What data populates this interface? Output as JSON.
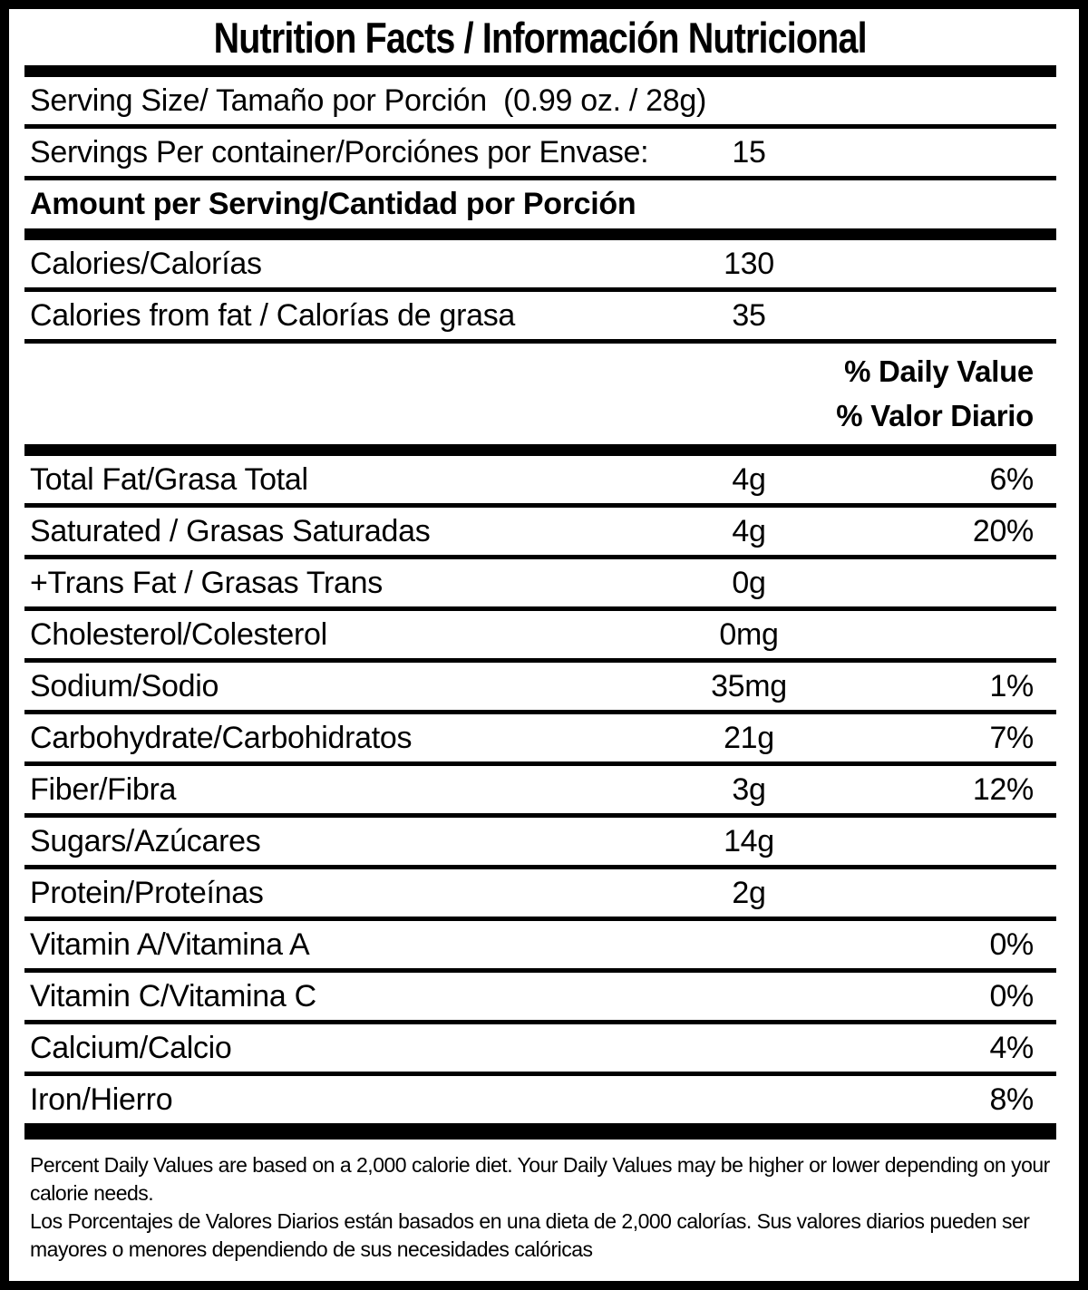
{
  "title": "Nutrition Facts / Información Nutricional",
  "serving": {
    "serving_size": "Serving Size/ Tamaño por Porción  (0.99 oz. / 28g)",
    "servings_label": "Servings Per container/Porciónes por Envase:",
    "servings_value": "15",
    "amount_per_serving": "Amount per Serving/Cantidad por Porción"
  },
  "calories": [
    {
      "label": "Calories/Calorías",
      "amount": "130"
    },
    {
      "label": "Calories from fat / Calorías de grasa",
      "amount": "35"
    }
  ],
  "dv_header": {
    "line1": "% Daily Value",
    "line2": "% Valor Diario"
  },
  "nutrients": [
    {
      "label": "Total Fat/Grasa Total",
      "amount": "4g",
      "dv": "6%"
    },
    {
      "label": "Saturated / Grasas Saturadas",
      "amount": "4g",
      "dv": "20%"
    },
    {
      "label": "+Trans Fat / Grasas Trans",
      "amount": "0g",
      "dv": ""
    },
    {
      "label": "Cholesterol/Colesterol",
      "amount": "0mg",
      "dv": ""
    },
    {
      "label": "Sodium/Sodio",
      "amount": "35mg",
      "dv": "1%"
    },
    {
      "label": "Carbohydrate/Carbohidratos",
      "amount": "21g",
      "dv": "7%"
    },
    {
      "label": "Fiber/Fibra",
      "amount": "3g",
      "dv": "12%"
    },
    {
      "label": "Sugars/Azúcares",
      "amount": "14g",
      "dv": ""
    },
    {
      "label": "Protein/Proteínas",
      "amount": "2g",
      "dv": ""
    },
    {
      "label": "Vitamin A/Vitamina A",
      "amount": "",
      "dv": "0%"
    },
    {
      "label": "Vitamin C/Vitamina C",
      "amount": "",
      "dv": "0%"
    },
    {
      "label": "Calcium/Calcio",
      "amount": "",
      "dv": "4%"
    },
    {
      "label": "Iron/Hierro",
      "amount": "",
      "dv": "8%"
    }
  ],
  "footnote": {
    "lines": [
      "Percent Daily Values are based on a 2,000 calorie diet. Your Daily Values may be higher or lower depending on your",
      "calorie needs.",
      "Los Porcentajes de Valores Diarios están basados en una dieta de 2,000 calorías. Sus valores diarios pueden ser",
      "mayores o menores dependiendo de sus necesidades calóricas"
    ]
  },
  "colors": {
    "ink": "#000000",
    "background": "#ffffff"
  }
}
